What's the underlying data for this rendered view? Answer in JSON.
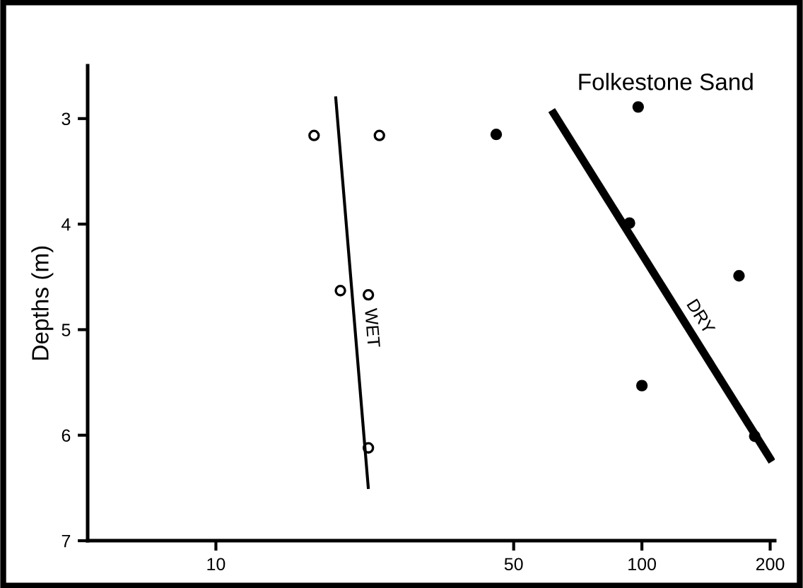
{
  "chart_data": {
    "type": "scatter",
    "title": "Folkestone Sand",
    "ylabel": "Depths (m)",
    "log": "x",
    "xlim": [
      5,
      205
    ],
    "xticks": [
      10,
      50,
      100,
      200
    ],
    "ylim": [
      7,
      2.5
    ],
    "yticks": [
      3,
      4,
      5,
      6,
      7
    ],
    "grid": false,
    "legend": false,
    "series": [
      {
        "marker": "circle",
        "color": "#000000",
        "x": [
          17.0,
          24.2,
          19.6,
          22.8,
          22.8
        ],
        "values": [
          3.16,
          3.16,
          4.63,
          4.67,
          6.12
        ]
      },
      {
        "marker": "circle",
        "color": "#000000",
        "x": [
          45.5,
          98,
          93.5,
          169,
          100,
          184
        ],
        "values": [
          3.15,
          2.89,
          3.99,
          4.49,
          5.53,
          6.01
        ]
      },
      {
        "type": "line",
        "name": "WET",
        "marker": "none",
        "line_style": "solid",
        "color": "#000000",
        "x": [
          19.1,
          22.8
        ],
        "values": [
          2.79,
          6.51
        ]
      },
      {
        "type": "line",
        "name": "DRY",
        "marker": "none",
        "line_style": "solid",
        "color": "#000000",
        "x": [
          61.4,
          202
        ],
        "values": [
          2.92,
          6.25
        ]
      }
    ]
  }
}
